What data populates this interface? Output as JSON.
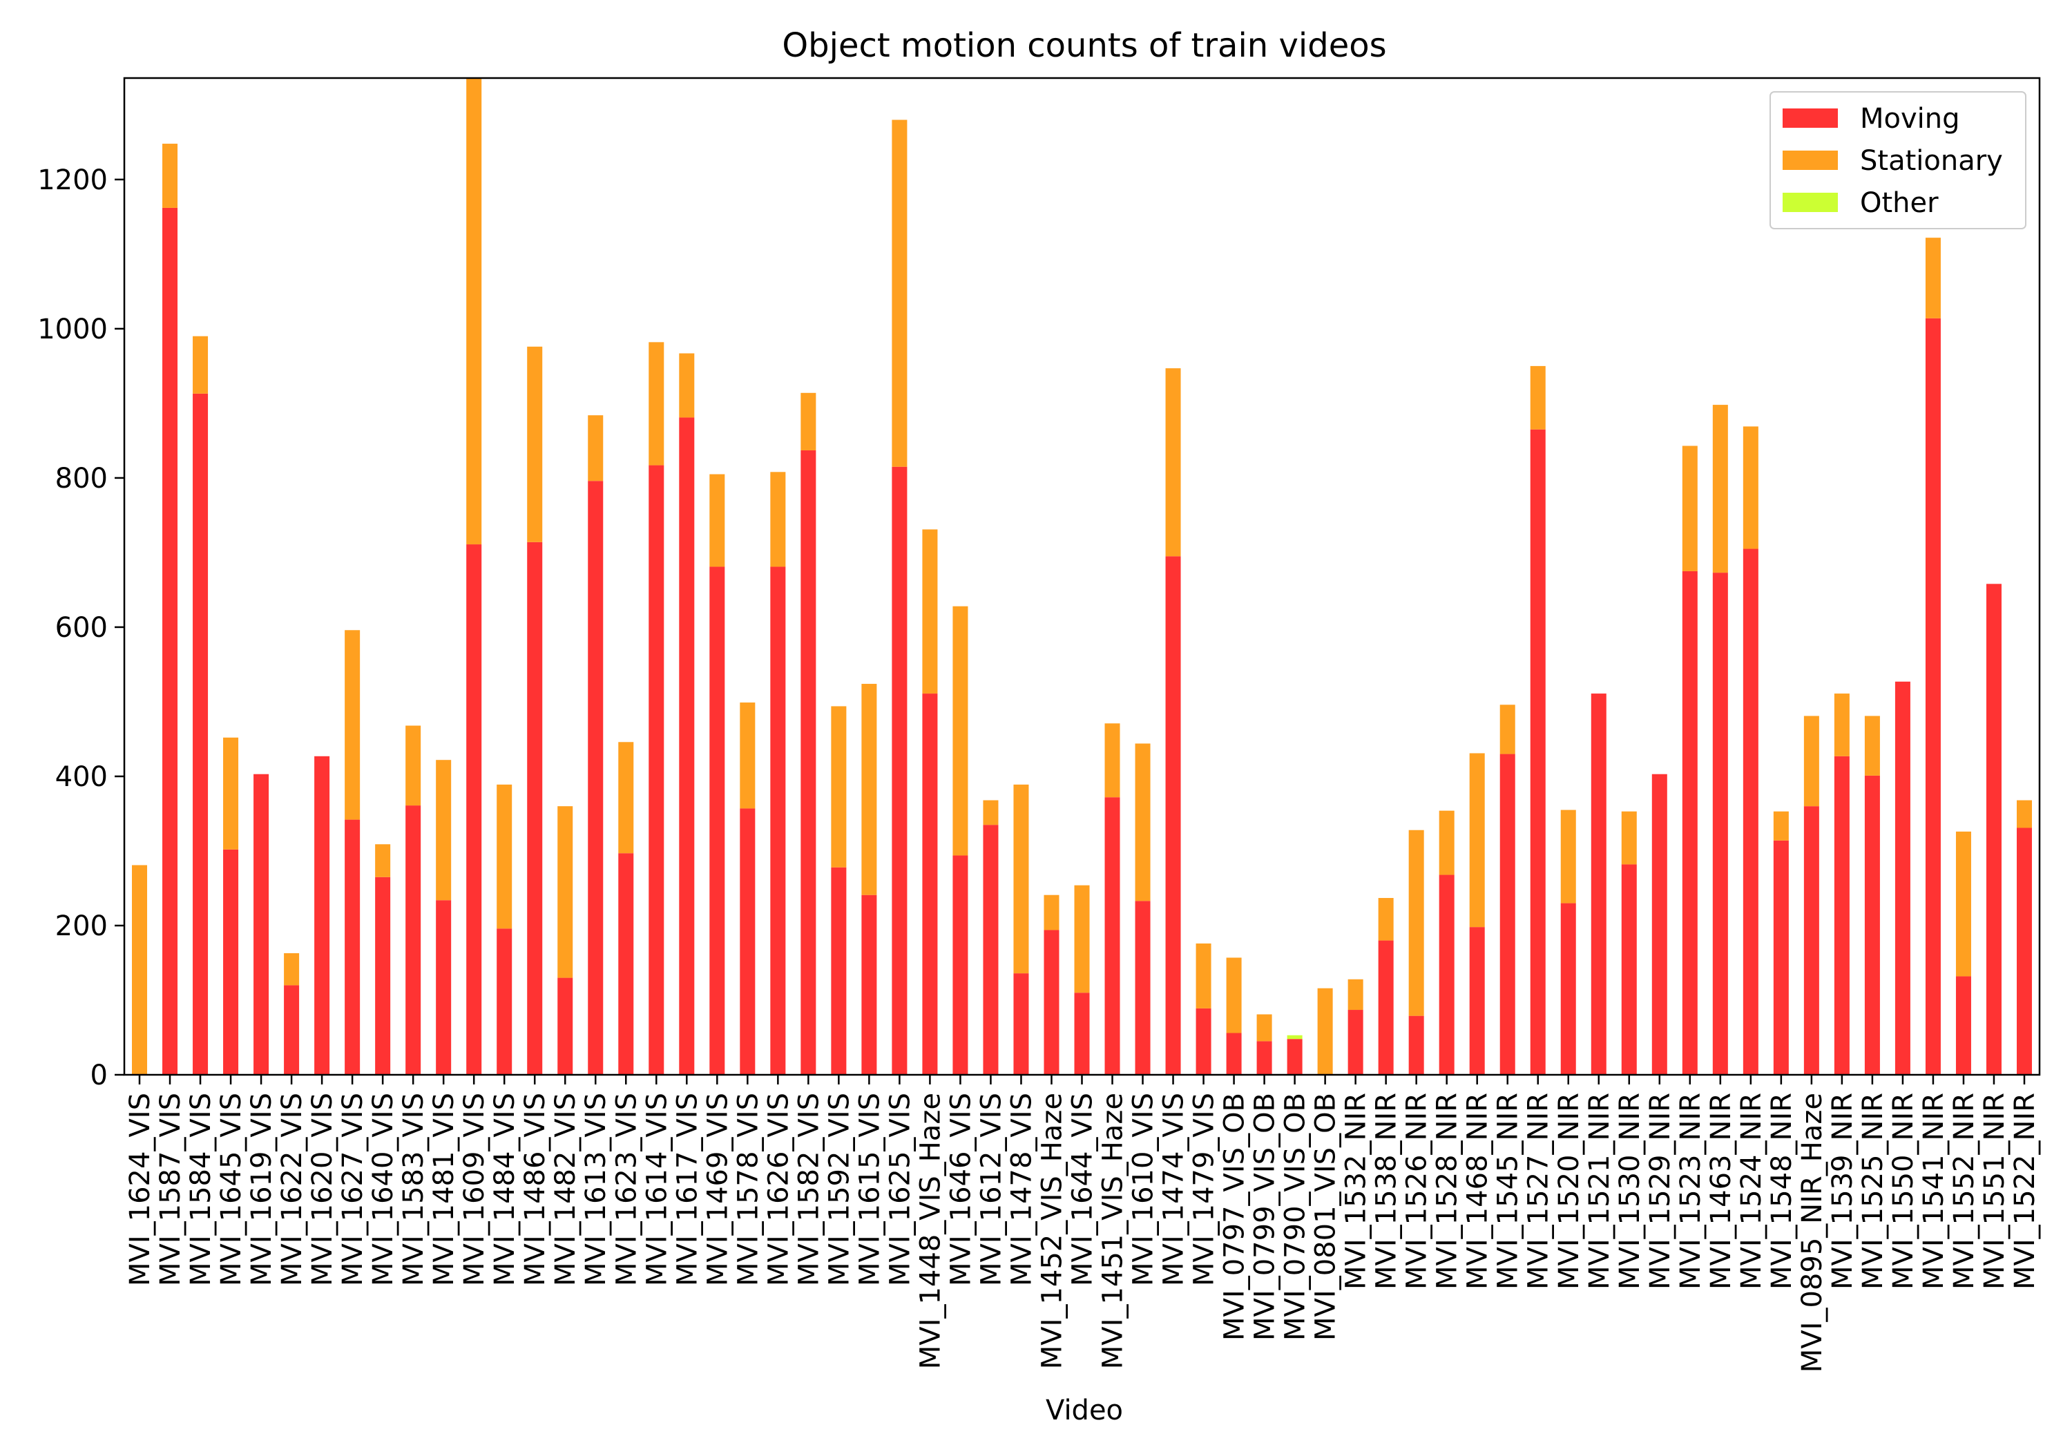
{
  "chart_data": {
    "type": "bar",
    "stacked": true,
    "title": "Object motion counts of train videos",
    "xlabel": "Video",
    "ylabel": "",
    "ylim": [
      0,
      1336
    ],
    "yticks": [
      0,
      200,
      400,
      600,
      800,
      1000,
      1200
    ],
    "legend_position": "top-right",
    "grid": false,
    "categories": [
      "MVI_1624_VIS",
      "MVI_1587_VIS",
      "MVI_1584_VIS",
      "MVI_1645_VIS",
      "MVI_1619_VIS",
      "MVI_1622_VIS",
      "MVI_1620_VIS",
      "MVI_1627_VIS",
      "MVI_1640_VIS",
      "MVI_1583_VIS",
      "MVI_1481_VIS",
      "MVI_1609_VIS",
      "MVI_1484_VIS",
      "MVI_1486_VIS",
      "MVI_1482_VIS",
      "MVI_1613_VIS",
      "MVI_1623_VIS",
      "MVI_1614_VIS",
      "MVI_1617_VIS",
      "MVI_1469_VIS",
      "MVI_1578_VIS",
      "MVI_1626_VIS",
      "MVI_1582_VIS",
      "MVI_1592_VIS",
      "MVI_1615_VIS",
      "MVI_1625_VIS",
      "MVI_1448_VIS_Haze",
      "MVI_1646_VIS",
      "MVI_1612_VIS",
      "MVI_1478_VIS",
      "MVI_1452_VIS_Haze",
      "MVI_1644_VIS",
      "MVI_1451_VIS_Haze",
      "MVI_1610_VIS",
      "MVI_1474_VIS",
      "MVI_1479_VIS",
      "MVI_0797_VIS_OB",
      "MVI_0799_VIS_OB",
      "MVI_0790_VIS_OB",
      "MVI_0801_VIS_OB",
      "MVI_1532_NIR",
      "MVI_1538_NIR",
      "MVI_1526_NIR",
      "MVI_1528_NIR",
      "MVI_1468_NIR",
      "MVI_1545_NIR",
      "MVI_1527_NIR",
      "MVI_1520_NIR",
      "MVI_1521_NIR",
      "MVI_1530_NIR",
      "MVI_1529_NIR",
      "MVI_1523_NIR",
      "MVI_1463_NIR",
      "MVI_1524_NIR",
      "MVI_1548_NIR",
      "MVI_0895_NIR_Haze",
      "MVI_1539_NIR",
      "MVI_1525_NIR",
      "MVI_1550_NIR",
      "MVI_1541_NIR",
      "MVI_1552_NIR",
      "MVI_1551_NIR",
      "MVI_1522_NIR"
    ],
    "series": [
      {
        "name": "Moving",
        "color": "#ff3333",
        "values": [
          0,
          1162,
          913,
          302,
          403,
          120,
          427,
          342,
          265,
          361,
          234,
          711,
          196,
          714,
          130,
          796,
          297,
          817,
          881,
          681,
          357,
          681,
          837,
          278,
          241,
          815,
          511,
          294,
          335,
          136,
          194,
          110,
          372,
          233,
          695,
          89,
          56,
          45,
          48,
          0,
          87,
          180,
          79,
          268,
          198,
          430,
          865,
          230,
          511,
          282,
          403,
          675,
          673,
          705,
          314,
          360,
          427,
          401,
          527,
          1014,
          132,
          658,
          331
        ],
        "value_labels": []
      },
      {
        "name": "Stationary",
        "color": "#ffa020",
        "values": [
          281,
          86,
          77,
          150,
          0,
          43,
          0,
          254,
          44,
          107,
          188,
          625,
          193,
          262,
          230,
          88,
          149,
          165,
          86,
          124,
          142,
          127,
          77,
          216,
          283,
          465,
          220,
          334,
          33,
          253,
          47,
          144,
          99,
          211,
          252,
          87,
          101,
          36,
          0,
          116,
          41,
          57,
          249,
          86,
          233,
          66,
          85,
          125,
          0,
          71,
          0,
          168,
          225,
          164,
          39,
          121,
          84,
          80,
          0,
          108,
          194,
          0,
          37
        ],
        "value_labels": []
      },
      {
        "name": "Other",
        "color": "#ccff33",
        "values": [
          0,
          0,
          0,
          0,
          0,
          0,
          0,
          0,
          0,
          0,
          0,
          0,
          0,
          0,
          0,
          0,
          0,
          0,
          0,
          0,
          0,
          0,
          0,
          0,
          0,
          0,
          0,
          0,
          0,
          0,
          0,
          0,
          0,
          0,
          0,
          0,
          0,
          0,
          5,
          0,
          0,
          0,
          0,
          0,
          0,
          0,
          0,
          0,
          0,
          0,
          0,
          0,
          0,
          0,
          0,
          0,
          0,
          0,
          0,
          0,
          0,
          0,
          0
        ],
        "value_labels": []
      }
    ]
  }
}
